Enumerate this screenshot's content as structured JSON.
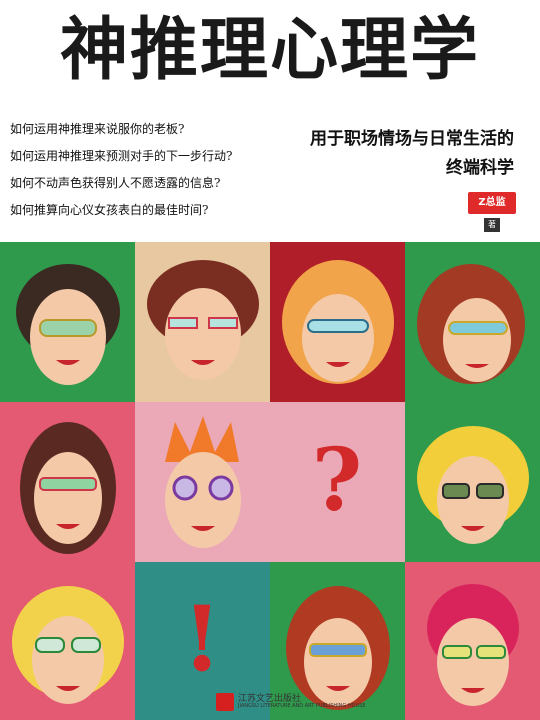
{
  "cover": {
    "title": "神推理心理学",
    "questions": [
      "如何运用神推理来说服你的老板?",
      "如何运用神推理来预测对手的下一步行动?",
      "如何不动声色获得别人不愿透露的信息?",
      "如何推算向心仪女孩表白的最佳时间?"
    ],
    "subtitle_line1": "用于职场情场与日常生活的",
    "subtitle_line2": "终端科学",
    "author": "Z总监",
    "author_role": "著",
    "question_mark": "?",
    "exclamation_mark": "!",
    "publisher_name": "江苏文艺出版社",
    "publisher_en": "JIANGSU LITERATURE AND ART PUBLISHING HOUSE"
  },
  "colors": {
    "green": "#2f9a4c",
    "beige": "#e8c8a0",
    "crimson": "#b01e2a",
    "pink": "#e35a72",
    "light_pink": "#eba8b6",
    "teal": "#2f8f86",
    "red": "#d22a2a"
  }
}
